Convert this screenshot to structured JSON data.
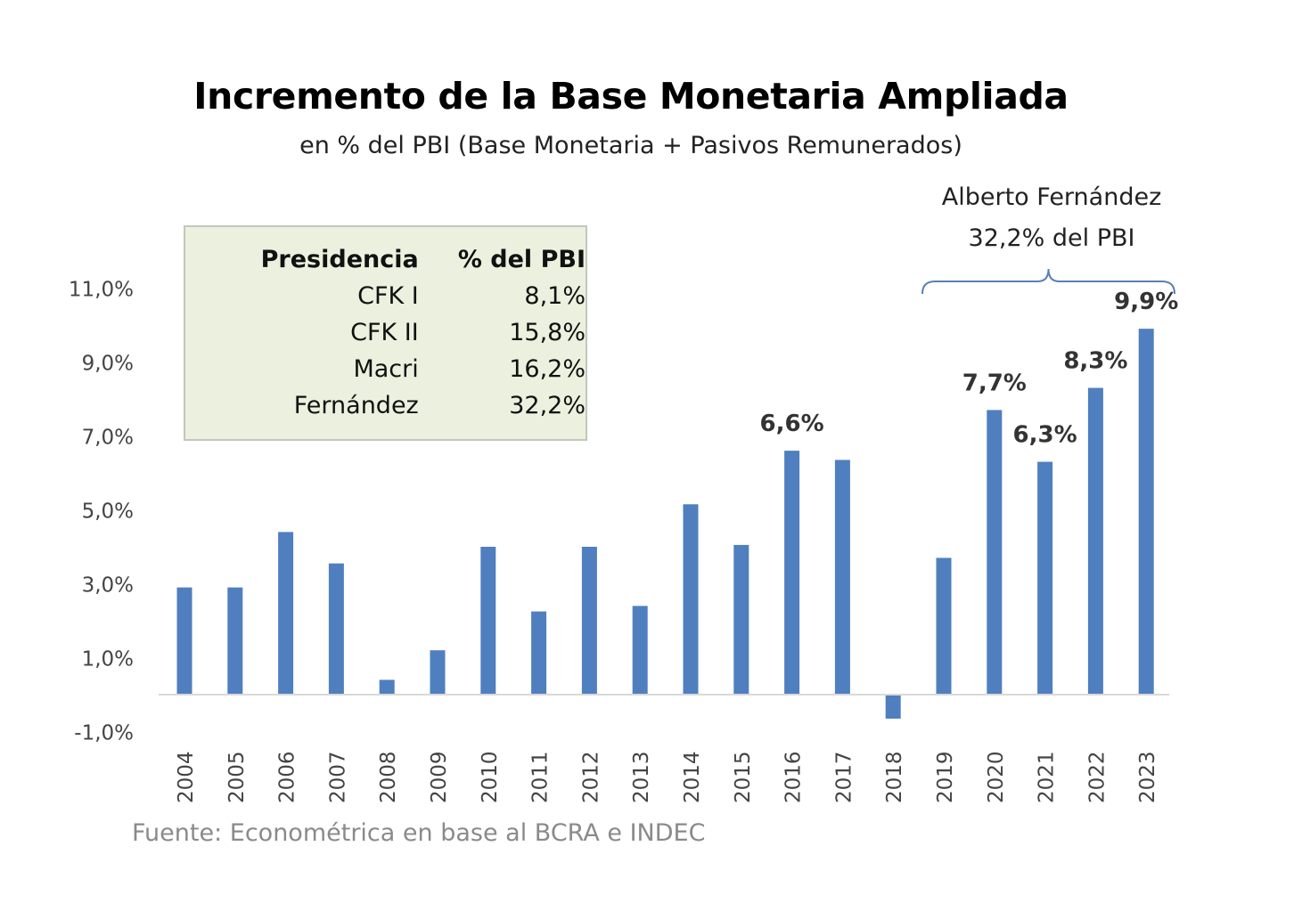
{
  "title": "Incremento de la Base Monetaria Ampliada",
  "subtitle": "en % del PBI (Base Monetaria + Pasivos Remunerados)",
  "annotation": {
    "line1": "Alberto Fernández",
    "line2": "32,2% del PBI"
  },
  "legend_table": {
    "headers": [
      "Presidencia",
      "% del PBI"
    ],
    "rows": [
      {
        "name": "CFK I",
        "value": "8,1%"
      },
      {
        "name": "CFK II",
        "value": "15,8%"
      },
      {
        "name": "Macri",
        "value": "16,2%"
      },
      {
        "name": "Fernández",
        "value": "32,2%"
      }
    ]
  },
  "source": "Fuente: Econométrica en base al BCRA e INDEC",
  "colors": {
    "bar": "#4f7fbf",
    "axis": "#d9d9d9",
    "tick_text": "#444444"
  },
  "chart_data": {
    "type": "bar",
    "categories": [
      "2004",
      "2005",
      "2006",
      "2007",
      "2008",
      "2009",
      "2010",
      "2011",
      "2012",
      "2013",
      "2014",
      "2015",
      "2016",
      "2017",
      "2018",
      "2019",
      "2020",
      "2021",
      "2022",
      "2023"
    ],
    "values": [
      2.9,
      2.9,
      4.4,
      3.55,
      0.4,
      1.2,
      4.0,
      2.25,
      4.0,
      2.4,
      5.15,
      4.05,
      6.6,
      6.35,
      -0.65,
      3.7,
      7.7,
      6.3,
      8.3,
      9.9
    ],
    "data_labels": {
      "2016": "6,6%",
      "2020": "7,7%",
      "2021": "6,3%",
      "2022": "8,3%",
      "2023": "9,9%"
    },
    "yticks": [
      "-1,0%",
      "1,0%",
      "3,0%",
      "5,0%",
      "7,0%",
      "9,0%",
      "11,0%"
    ],
    "ytick_values": [
      -1,
      1,
      3,
      5,
      7,
      9,
      11
    ],
    "ylim": [
      -1,
      11
    ],
    "grid": false,
    "title": "Incremento de la Base Monetaria Ampliada",
    "subtitle": "en % del PBI (Base Monetaria + Pasivos Remunerados)"
  }
}
